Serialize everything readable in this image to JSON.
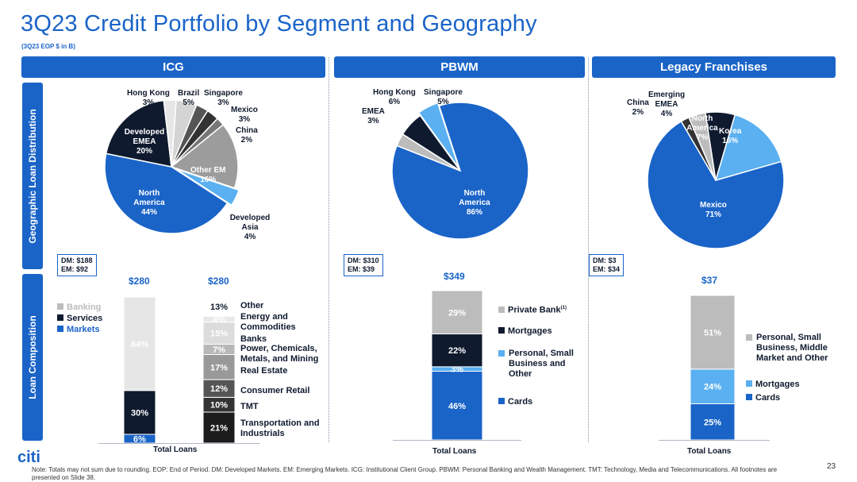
{
  "title": "3Q23 Credit Portfolio by Segment and Geography",
  "subtitle": "(3Q23 EOP $ in B)",
  "segments": [
    "ICG",
    "PBWM",
    "Legacy Franchises"
  ],
  "side_labels": {
    "geo": "Geographic Loan Distribution",
    "loan": "Loan Composition"
  },
  "dm_em": {
    "icg": [
      "DM: $188",
      "EM: $92"
    ],
    "pbwm": [
      "DM: $310",
      "EM: $39"
    ],
    "legacy": [
      "DM: $3",
      "EM: $34"
    ]
  },
  "axis_label": "Total Loans",
  "colors": {
    "blue": "#1a64c8",
    "navy": "#0f1a2e",
    "light_gray": "#e6e6e6",
    "mid_gray": "#bcbcbc",
    "light_blue": "#5ab0f0"
  },
  "chart_data": [
    {
      "type": "pie",
      "id": "icg_geo",
      "slices": [
        {
          "label": "North America",
          "value": "44%",
          "num": 44,
          "color": "#1a64c8",
          "text_color": "#ffffff"
        },
        {
          "label": "Developed EMEA",
          "value": "20%",
          "num": 20,
          "color": "#0f1a2e",
          "text_color": "#ffffff"
        },
        {
          "label": "Hong Kong",
          "value": "3%",
          "num": 3,
          "color": "#e6e6e6"
        },
        {
          "label": "Brazil",
          "value": "5%",
          "num": 5,
          "color": "#d4d4d4"
        },
        {
          "label": "Singapore",
          "value": "3%",
          "num": 3,
          "color": "#555555"
        },
        {
          "label": "Mexico",
          "value": "3%",
          "num": 3,
          "color": "#333333"
        },
        {
          "label": "China",
          "value": "2%",
          "num": 2,
          "color": "#777777"
        },
        {
          "label": "Other EM",
          "value": "16%",
          "num": 16,
          "color": "#9c9c9c",
          "text_color": "#ffffff"
        },
        {
          "label": "Developed Asia",
          "value": "4%",
          "num": 4,
          "color": "#5ab0f0"
        }
      ]
    },
    {
      "type": "pie",
      "id": "pbwm_geo",
      "slices": [
        {
          "label": "North America",
          "value": "86%",
          "num": 86,
          "color": "#1a64c8",
          "text_color": "#ffffff"
        },
        {
          "label": "EMEA",
          "value": "3%",
          "num": 3,
          "color": "#bcbcbc"
        },
        {
          "label": "Hong Kong",
          "value": "6%",
          "num": 6,
          "color": "#0f1a2e"
        },
        {
          "label": "Singapore",
          "value": "5%",
          "num": 5,
          "color": "#5ab0f0"
        }
      ]
    },
    {
      "type": "pie",
      "id": "legacy_geo",
      "slices": [
        {
          "label": "Mexico",
          "value": "71%",
          "num": 71,
          "color": "#1a64c8",
          "text_color": "#ffffff"
        },
        {
          "label": "China",
          "value": "2%",
          "num": 2,
          "color": "#333333"
        },
        {
          "label": "Emerging EMEA",
          "value": "4%",
          "num": 4,
          "color": "#bcbcbc"
        },
        {
          "label": "North America",
          "value": "7%",
          "num": 7,
          "color": "#0f1a2e",
          "text_color": "#ffffff"
        },
        {
          "label": "Korea",
          "value": "16%",
          "num": 16,
          "color": "#5ab0f0",
          "text_color": "#ffffff"
        }
      ]
    },
    {
      "type": "bar",
      "id": "icg_loans",
      "stacked": true,
      "categories": [
        "Total Loans"
      ],
      "bars": [
        {
          "total": "$280",
          "segments": [
            {
              "name": "Markets",
              "value": "6%",
              "num": 6,
              "color": "#1a64c8"
            },
            {
              "name": "Services",
              "value": "30%",
              "num": 30,
              "color": "#0f1a2e"
            },
            {
              "name": "Banking",
              "value": "64%",
              "num": 64,
              "color": "#e6e6e6"
            }
          ]
        },
        {
          "total": "$280",
          "segments": [
            {
              "name": "Transportation and Industrials",
              "value": "21%",
              "num": 21,
              "color": "#1c1c1c"
            },
            {
              "name": "TMT",
              "value": "10%",
              "num": 10,
              "color": "#333333"
            },
            {
              "name": "Consumer Retail",
              "value": "12%",
              "num": 12,
              "color": "#555555"
            },
            {
              "name": "Real Estate",
              "value": "17%",
              "num": 17,
              "color": "#999999"
            },
            {
              "name": "Power, Chemicals, Metals, and Mining",
              "value": "7%",
              "num": 7,
              "color": "#b8b8b8"
            },
            {
              "name": "Banks",
              "value": "15%",
              "num": 15,
              "color": "#dcdcdc"
            },
            {
              "name": "Energy and Commodities",
              "value": "4%",
              "num": 4,
              "color": "#e8e8e8"
            },
            {
              "name": "Other",
              "value": "13%",
              "num": 13,
              "color": "#ffffff"
            }
          ]
        }
      ],
      "legend": [
        {
          "name": "Banking",
          "color": "#bcbcbc"
        },
        {
          "name": "Services",
          "color": "#0f1a2e"
        },
        {
          "name": "Markets",
          "color": "#1a64c8"
        }
      ]
    },
    {
      "type": "bar",
      "id": "pbwm_loans",
      "stacked": true,
      "categories": [
        "Total Loans"
      ],
      "bars": [
        {
          "total": "$349",
          "segments": [
            {
              "name": "Cards",
              "value": "46%",
              "num": 46,
              "color": "#1a64c8"
            },
            {
              "name": "Personal, Small Business and Other",
              "value": "3%",
              "num": 3,
              "color": "#5ab0f0"
            },
            {
              "name": "Mortgages",
              "value": "22%",
              "num": 22,
              "color": "#0f1a2e"
            },
            {
              "name": "Private Bank",
              "value": "29%",
              "num": 29,
              "color": "#bcbcbc"
            }
          ]
        }
      ],
      "legend": [
        {
          "name": "Private Bank",
          "sup": "(1)",
          "color": "#bcbcbc"
        },
        {
          "name": "Mortgages",
          "color": "#0f1a2e"
        },
        {
          "name": "Personal, Small Business and Other",
          "color": "#5ab0f0"
        },
        {
          "name": "Cards",
          "color": "#1a64c8"
        }
      ]
    },
    {
      "type": "bar",
      "id": "legacy_loans",
      "stacked": true,
      "categories": [
        "Total Loans"
      ],
      "bars": [
        {
          "total": "$37",
          "segments": [
            {
              "name": "Cards",
              "value": "25%",
              "num": 25,
              "color": "#1a64c8"
            },
            {
              "name": "Mortgages",
              "value": "24%",
              "num": 24,
              "color": "#5ab0f0"
            },
            {
              "name": "Personal, Small Business, Middle Market and Other",
              "value": "51%",
              "num": 51,
              "color": "#bcbcbc"
            }
          ]
        }
      ],
      "legend": [
        {
          "name": "Personal, Small Business, Middle Market and Other",
          "color": "#bcbcbc"
        },
        {
          "name": "Mortgages",
          "color": "#5ab0f0"
        },
        {
          "name": "Cards",
          "color": "#1a64c8"
        }
      ]
    }
  ],
  "icg_categories": [
    "Other",
    "Energy and Commodities",
    "Banks",
    "Power, Chemicals, Metals, and Mining",
    "Real Estate",
    "Consumer Retail",
    "TMT",
    "Transportation and Industrials"
  ],
  "pbwm_legend_text": {
    "private": "Private Bank",
    "sup": "(1)",
    "mortgages": "Mortgages",
    "personal": "Personal, Small Business and Other",
    "cards": "Cards"
  },
  "legacy_legend_text": {
    "personal": "Personal, Small Business, Middle Market and Other",
    "mortgages": "Mortgages",
    "cards": "Cards"
  },
  "icg_legend_text": {
    "banking": "Banking",
    "services": "Services",
    "markets": "Markets"
  },
  "footer": "Note:  Totals may not sum due to rounding.  EOP: End of Period. DM: Developed Markets.  EM: Emerging Markets. ICG: Institutional Client Group.  PBWM: Personal Banking and Wealth Management. TMT: Technology, Media and Telecommunications.  All footnotes are presented on Slide 38.",
  "logo": "citi",
  "page_number": "23"
}
